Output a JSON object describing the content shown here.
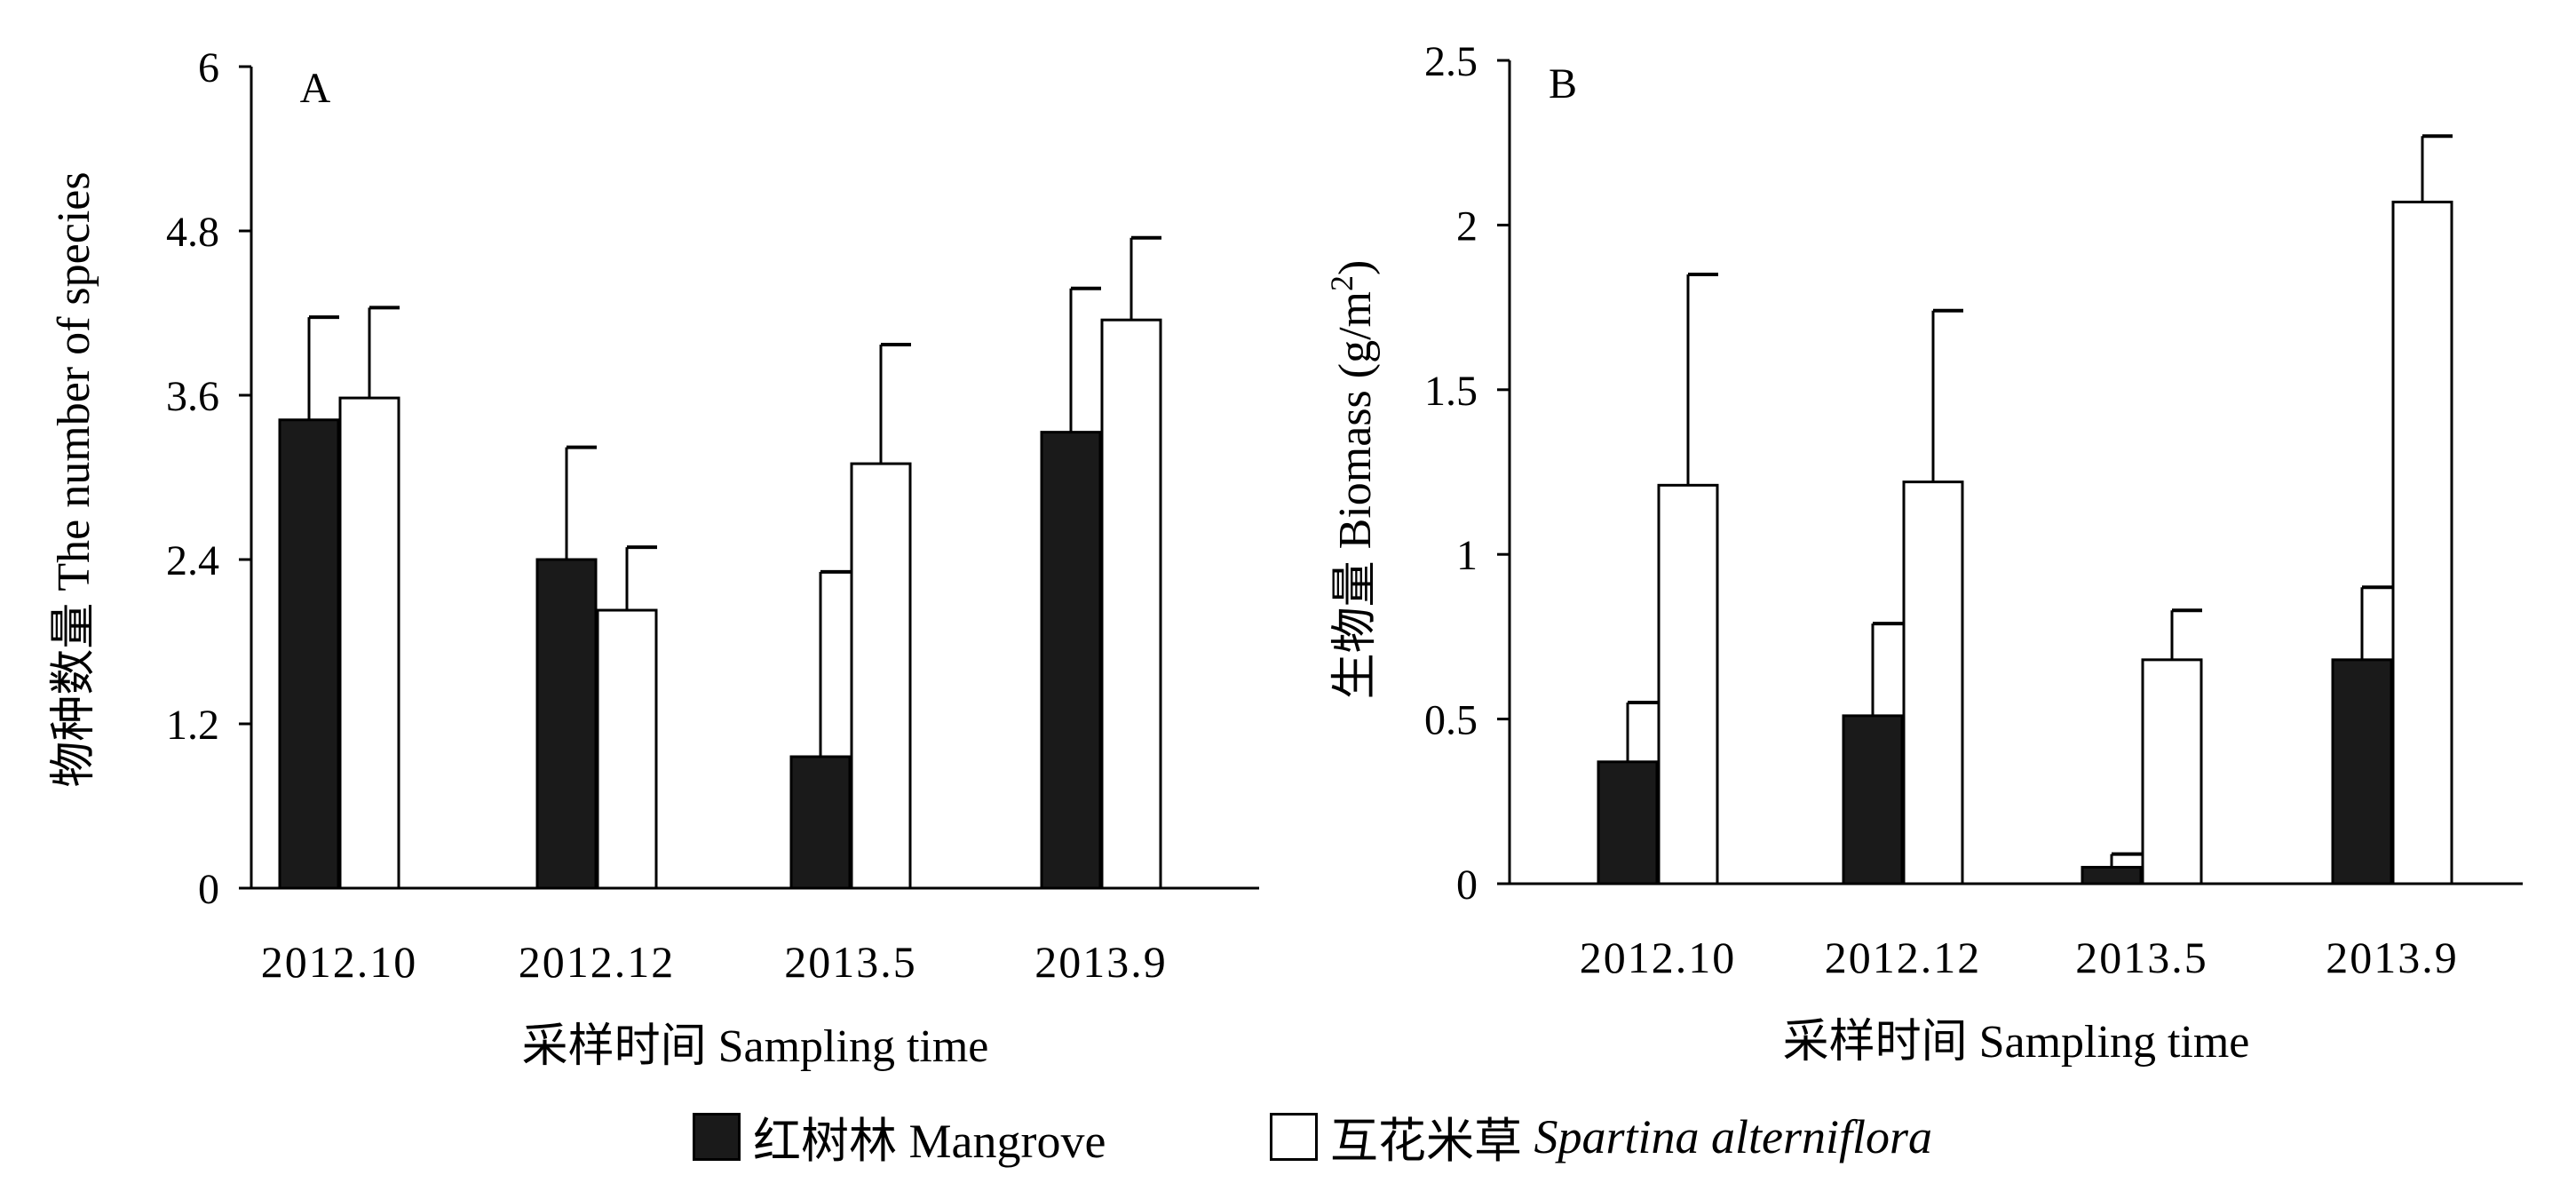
{
  "chart_data": [
    {
      "type": "bar",
      "panel_label": "A",
      "categories": [
        "2012.10",
        "2012.12",
        "2013.5",
        "2013.9"
      ],
      "series": [
        {
          "name": "红树林 Mangrove",
          "values": [
            3.42,
            2.4,
            0.96,
            3.33
          ],
          "errors": [
            0.75,
            0.82,
            1.35,
            1.05
          ],
          "color": "#1a1a1a"
        },
        {
          "name": "互花米草 Spartina alterniflora",
          "values": [
            3.58,
            2.03,
            3.1,
            4.15
          ],
          "errors": [
            0.66,
            0.46,
            0.87,
            0.6
          ],
          "color": "#ffffff"
        }
      ],
      "xlabel": "采样时间 Sampling time",
      "ylabel": "物种数量 The number of species",
      "ylim": [
        0,
        6
      ],
      "yticks": [
        "0",
        "1.2",
        "2.4",
        "3.6",
        "4.8",
        "6"
      ],
      "ytick_values": [
        0,
        1.2,
        2.4,
        3.6,
        4.8,
        6
      ]
    },
    {
      "type": "bar",
      "panel_label": "B",
      "categories": [
        "2012.10",
        "2012.12",
        "2013.5",
        "2013.9"
      ],
      "series": [
        {
          "name": "红树林 Mangrove",
          "values": [
            0.37,
            0.51,
            0.05,
            0.68
          ],
          "errors": [
            0.18,
            0.28,
            0.04,
            0.22
          ],
          "color": "#1a1a1a"
        },
        {
          "name": "互花米草 Spartina alterniflora",
          "values": [
            1.21,
            1.22,
            0.68,
            2.07
          ],
          "errors": [
            0.64,
            0.52,
            0.15,
            0.2
          ],
          "color": "#ffffff"
        }
      ],
      "xlabel": "采样时间 Sampling time",
      "ylabel_prefix": "生物量 Biomass (g/m",
      "ylabel_sup": "2",
      "ylabel_suffix": ")",
      "ylim": [
        0,
        2.5
      ],
      "yticks": [
        "0",
        "0.5",
        "1",
        "1.5",
        "2",
        "2.5"
      ],
      "ytick_values": [
        0,
        0.5,
        1,
        1.5,
        2,
        2.5
      ]
    }
  ],
  "legend": {
    "mangrove_label": "红树林 Mangrove",
    "spartina_cn": "互花米草",
    "spartina_latin": "Spartina alterniflora"
  }
}
